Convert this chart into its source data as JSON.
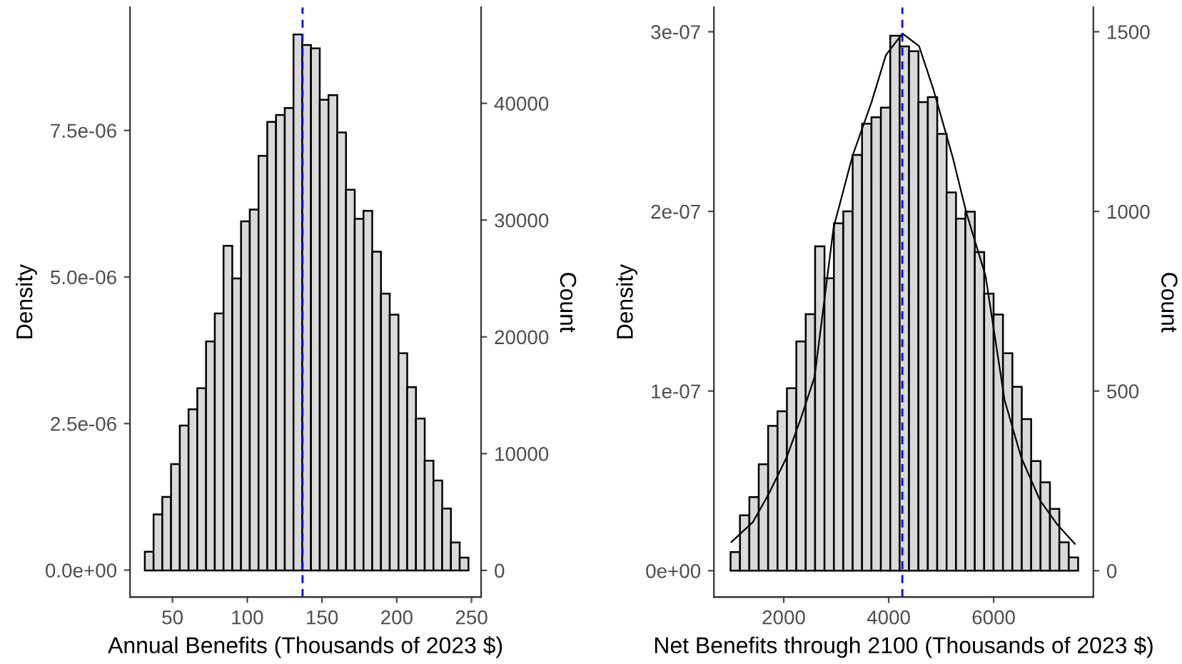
{
  "chart_data": [
    {
      "type": "histogram",
      "xlabel": "Annual Benefits (Thousands of 2023 $)",
      "ylabel": "Density",
      "y2label": "Count",
      "bins": [
        31.5,
        37.35,
        43.2,
        49.05,
        54.9,
        60.75,
        66.6,
        72.45,
        78.3,
        84.15,
        90.0,
        95.85,
        101.7,
        107.55,
        113.4,
        119.25,
        125.1,
        130.95,
        136.8,
        142.65,
        148.5,
        154.35,
        160.2,
        166.05,
        171.9,
        177.75,
        183.6,
        189.45,
        195.3,
        201.15,
        207.0,
        212.85,
        218.7,
        224.55,
        230.4,
        236.25,
        242.1,
        247.95
      ],
      "series": [
        {
          "axis": "y2",
          "color": "#d9d9d9",
          "values": [
            1600,
            4800,
            6300,
            9100,
            12400,
            13800,
            15600,
            19600,
            22000,
            27800,
            25000,
            29900,
            30900,
            35500,
            38400,
            39000,
            39600,
            45900,
            45000,
            44700,
            40300,
            40700,
            37500,
            32600,
            30100,
            30800,
            27300,
            23700,
            21900,
            18600,
            15700,
            13000,
            9400,
            7700,
            5300,
            2400,
            1100
          ]
        }
      ],
      "xlim": [
        21.6,
        256.4
      ],
      "xticks": [
        50,
        100,
        150,
        200,
        250
      ],
      "ylim": [
        -4.57e-07,
        9.6e-06
      ],
      "yticks": [
        {
          "value": 0,
          "label": "0.0e+00"
        },
        {
          "value": 2.5e-06,
          "label": "2.5e-06"
        },
        {
          "value": 5e-06,
          "label": "5.0e-06"
        },
        {
          "value": 7.5e-06,
          "label": "7.5e-06"
        }
      ],
      "y2lim": [
        -2270,
        48220
      ],
      "y2ticks": [
        0,
        10000,
        20000,
        30000,
        40000
      ],
      "ref_lines": [
        {
          "axis": "x",
          "value": 137,
          "color": "#0000ff",
          "line_style": "dashed"
        }
      ],
      "grid": false
    },
    {
      "type": "histogram",
      "xlabel": "Net Benefits through 2100 (Thousands of 2023 $)",
      "ylabel": "Density",
      "y2label": "Count",
      "bins": [
        987,
        1166,
        1345,
        1524,
        1703,
        1882,
        2061,
        2240,
        2419,
        2598,
        2777,
        2956,
        3135,
        3314,
        3493,
        3672,
        3851,
        4030,
        4209,
        4388,
        4567,
        4746,
        4925,
        5104,
        5283,
        5462,
        5641,
        5820,
        5999,
        6178,
        6357,
        6536,
        6715,
        6894,
        7073,
        7252,
        7431,
        7610
      ],
      "series": [
        {
          "axis": "y2",
          "color": "#d9d9d9",
          "values": [
            52,
            154,
            205,
            296,
            403,
            444,
            508,
            638,
            714,
            903,
            814,
            967,
            1000,
            1157,
            1244,
            1262,
            1289,
            1489,
            1459,
            1446,
            1304,
            1318,
            1216,
            1053,
            980,
            999,
            887,
            771,
            713,
            605,
            512,
            422,
            305,
            246,
            172,
            79,
            37
          ]
        },
        {
          "type": "line",
          "color": "#000000",
          "x": [
            1004,
            1411,
            1701,
            2054,
            2318,
            2589,
            2950,
            3312,
            3675,
            3947,
            4262,
            4579,
            4851,
            5212,
            5483,
            5847,
            6208,
            6526,
            6887,
            7205,
            7547
          ],
          "values": [
            1.6e-08,
            2.7e-08,
            4.2e-08,
            6.3e-08,
            8.4e-08,
            1.08e-07,
            1.91e-07,
            2.31e-07,
            2.61e-07,
            2.87e-07,
            2.99e-07,
            2.92e-07,
            2.68e-07,
            2.31e-07,
            1.99e-07,
            1.64e-07,
            9.5e-08,
            6.3e-08,
            3.9e-08,
            2.6e-08,
            1.5e-08
          ]
        }
      ],
      "xlim": [
        670,
        7900
      ],
      "xticks": [
        2000,
        4000,
        6000
      ],
      "ylim": [
        -1.46e-08,
        3.136e-07
      ],
      "yticks": [
        {
          "value": 0,
          "label": "0e+00"
        },
        {
          "value": 1e-07,
          "label": "1e-07"
        },
        {
          "value": 2e-07,
          "label": "2e-07"
        },
        {
          "value": 3e-07,
          "label": "3e-07"
        }
      ],
      "y2lim": [
        -73,
        1568
      ],
      "y2ticks": [
        0,
        500,
        1000,
        1500
      ],
      "ref_lines": [
        {
          "axis": "x",
          "value": 4260,
          "color": "#0000ff",
          "line_style": "dashed"
        }
      ],
      "grid": false
    }
  ]
}
